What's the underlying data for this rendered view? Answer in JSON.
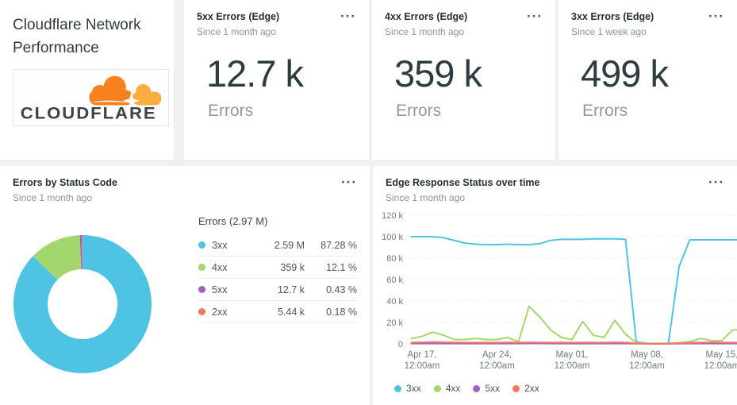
{
  "header_card": {
    "title": "Cloudflare Network Performance",
    "logo_text": "CLOUDFLARE"
  },
  "icons": {
    "more_options_glyph": "···"
  },
  "colors": {
    "c3xx": "#4fc3e2",
    "c4xx": "#a3d76d",
    "c5xx": "#a55fc8",
    "c2xx": "#f4795f",
    "big_number": "#2d3c3d",
    "grid": "#e0e3e3",
    "axis_text": "#717b7b"
  },
  "kpis": [
    {
      "title": "5xx Errors (Edge)",
      "subtitle": "Since 1 month ago",
      "value": "12.7 k",
      "unit": "Errors"
    },
    {
      "title": "4xx Errors (Edge)",
      "subtitle": "Since 1 month ago",
      "value": "359 k",
      "unit": "Errors"
    },
    {
      "title": "3xx Errors (Edge)",
      "subtitle": "Since 1 week ago",
      "value": "499 k",
      "unit": "Errors"
    }
  ],
  "chart_data": [
    {
      "type": "pie",
      "donut": true,
      "title": "Errors by Status Code",
      "subtitle": "Since 1 month ago",
      "table_title": "Errors (2.97 M)",
      "segments": [
        {
          "label": "3xx",
          "value": "2.59 M",
          "percent": 87.28,
          "percent_label": "87.28 %",
          "color": "#4fc3e2"
        },
        {
          "label": "4xx",
          "value": "359 k",
          "percent": 12.1,
          "percent_label": "12.1 %",
          "color": "#a3d76d"
        },
        {
          "label": "5xx",
          "value": "12.7 k",
          "percent": 0.43,
          "percent_label": "0.43 %",
          "color": "#a55fc8"
        },
        {
          "label": "2xx",
          "value": "5.44 k",
          "percent": 0.18,
          "percent_label": "0.18 %",
          "color": "#f4795f"
        }
      ]
    },
    {
      "type": "line",
      "title": "Edge Response Status over time",
      "subtitle": "Since 1 month ago",
      "ylabel": "",
      "xlabel": "",
      "ylim": [
        0,
        120000
      ],
      "grid": true,
      "legend_position": "bottom",
      "yticks": [
        {
          "label": "120 k",
          "value": 120
        },
        {
          "label": "100 k",
          "value": 100
        },
        {
          "label": "80 k",
          "value": 80
        },
        {
          "label": "60 k",
          "value": 60
        },
        {
          "label": "40 k",
          "value": 40
        },
        {
          "label": "20 k",
          "value": 20
        },
        {
          "label": "0",
          "value": 0
        }
      ],
      "xticks": [
        {
          "line1": "Apr 17,",
          "line2": "12:00am",
          "day_index": 1
        },
        {
          "line1": "Apr 24,",
          "line2": "12:00am",
          "day_index": 8
        },
        {
          "line1": "May 01,",
          "line2": "12:00am",
          "day_index": 15
        },
        {
          "line1": "May 08,",
          "line2": "12:00am",
          "day_index": 22
        },
        {
          "line1": "May 15,",
          "line2": "12:00am",
          "day_index": 29
        }
      ],
      "series": [
        {
          "name": "3xx",
          "color": "#4fc3e2",
          "unit": "k",
          "values": [
            100,
            100,
            100,
            99,
            96.5,
            94,
            93,
            92.5,
            92.5,
            93,
            92.5,
            92.5,
            93.5,
            96.5,
            97.5,
            97.5,
            97.5,
            98,
            98,
            98,
            97.5,
            2,
            0.4,
            0.4,
            0.4,
            72,
            97,
            97,
            97,
            97,
            97,
            97
          ]
        },
        {
          "name": "4xx",
          "color": "#a3d76d",
          "unit": "k",
          "values": [
            5,
            7,
            11,
            8,
            4,
            4,
            5,
            4,
            4,
            6,
            2,
            35,
            25,
            13,
            6,
            4,
            21,
            8,
            6,
            22,
            9,
            1,
            0.5,
            0.5,
            0.5,
            1,
            2,
            5,
            3,
            3,
            13,
            13
          ]
        },
        {
          "name": "5xx",
          "color": "#a55fc8",
          "unit": "k",
          "values": [
            0.3,
            0.3,
            0.3,
            0.3,
            0.3,
            0.3,
            0.3,
            0.3,
            0.3,
            0.3,
            0.3,
            0.4,
            0.4,
            0.3,
            0.3,
            0.3,
            0.3,
            0.3,
            0.3,
            0.3,
            0.3,
            0.2,
            0.1,
            0.1,
            0.1,
            0.2,
            0.3,
            0.3,
            0.3,
            0.3,
            0.3,
            0.3
          ]
        },
        {
          "name": "2xx",
          "color": "#f4795f",
          "unit": "k",
          "values": [
            1.2,
            1.5,
            1.8,
            1.6,
            1.3,
            1.2,
            1.2,
            1.2,
            1.2,
            1.4,
            1.2,
            1.4,
            1.3,
            1.2,
            1.2,
            1.2,
            1.3,
            1.2,
            1.2,
            1.4,
            1.2,
            0.5,
            0.3,
            0.3,
            0.3,
            0.6,
            1,
            1.2,
            1.5,
            1.3,
            1.2,
            1.2
          ]
        }
      ],
      "legend": [
        "3xx",
        "4xx",
        "5xx",
        "2xx"
      ]
    }
  ]
}
